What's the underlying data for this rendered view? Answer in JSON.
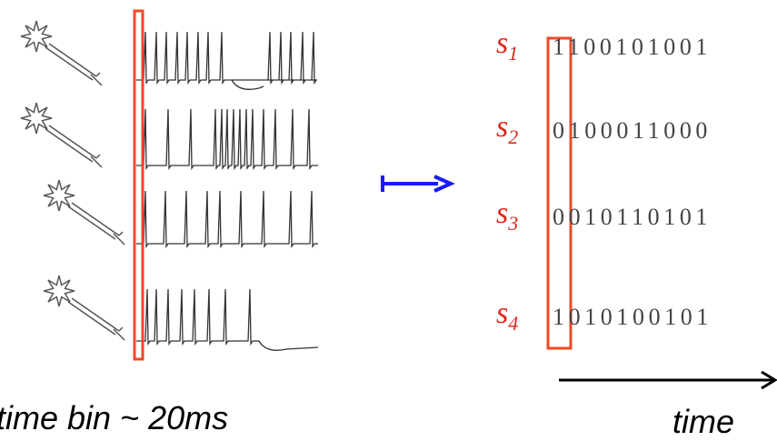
{
  "rows": [
    {
      "label": "s",
      "subscript": "1",
      "bits": "1100101001"
    },
    {
      "label": "s",
      "subscript": "2",
      "bits": "0100011000"
    },
    {
      "label": "s",
      "subscript": "3",
      "bits": "0010110101"
    },
    {
      "label": "s",
      "subscript": "4",
      "bits": "1010100101"
    }
  ],
  "caption_left": "time bin ~ 20ms",
  "caption_right": "time"
}
